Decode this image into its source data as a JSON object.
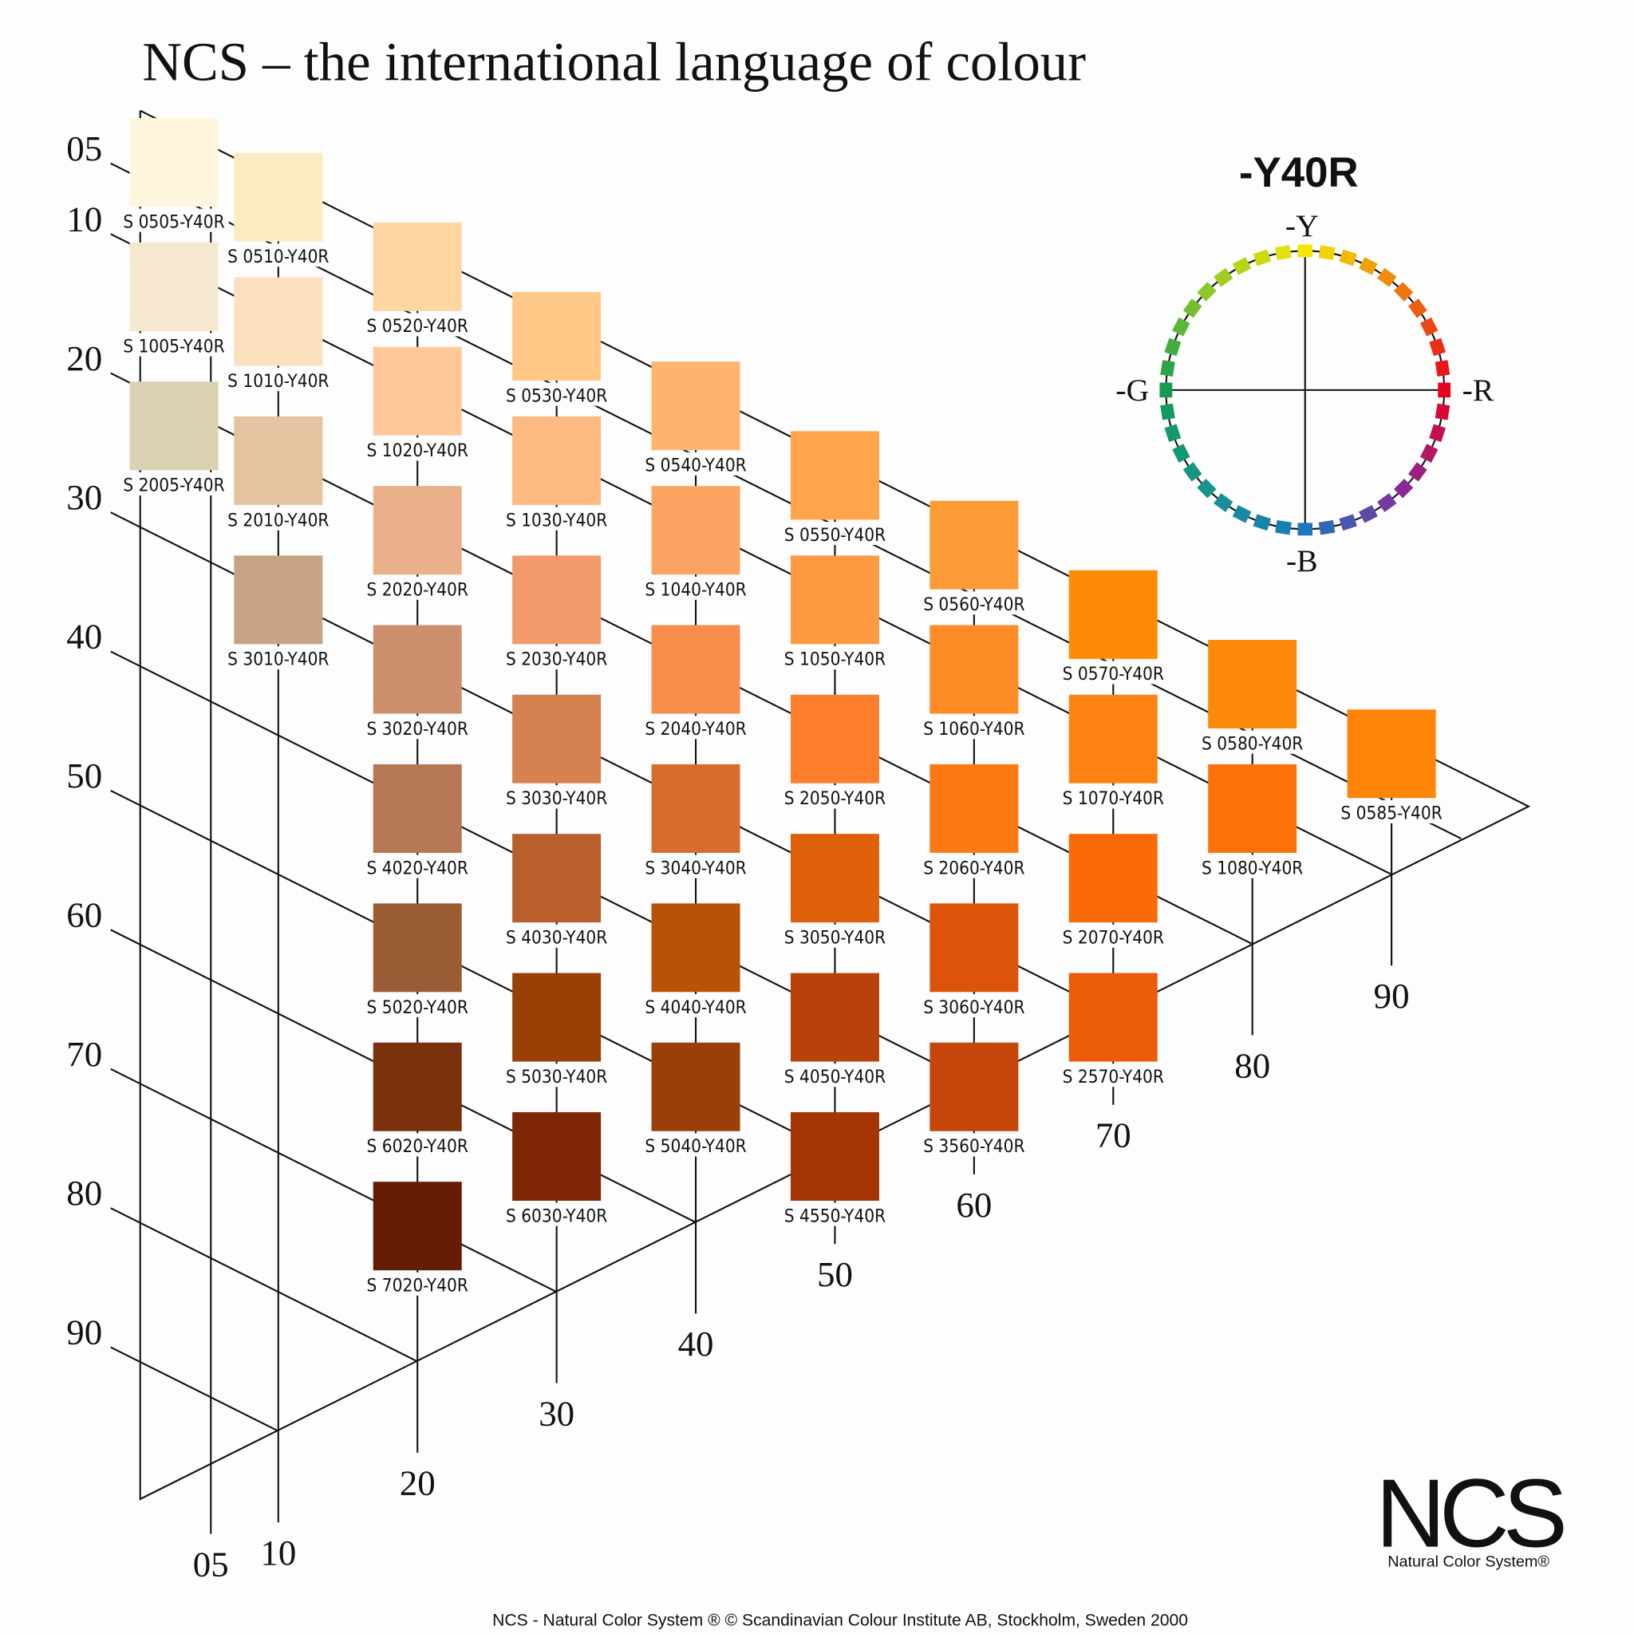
{
  "title": "NCS – the international language of colour",
  "swatches": [
    [
      {
        "label": "S 0505-Y40R",
        "color": "#fef6dc"
      },
      {
        "label": "S 1005-Y40R",
        "color": "#f5e8cf"
      },
      {
        "label": "S 2005-Y40R",
        "color": "#dcd0b2"
      }
    ],
    [
      {
        "label": "S 0510-Y40R",
        "color": "#feebc4"
      },
      {
        "label": "S 1010-Y40R",
        "color": "#fbe0bd"
      },
      {
        "label": "S 2010-Y40R",
        "color": "#e3c3a0"
      },
      {
        "label": "S 3010-Y40R",
        "color": "#c7a283"
      }
    ],
    [
      {
        "label": "S 0520-Y40R",
        "color": "#fed6a2"
      },
      {
        "label": "S 1020-Y40R",
        "color": "#fdc99b"
      },
      {
        "label": "S 2020-Y40R",
        "color": "#e9b08a"
      },
      {
        "label": "S 3020-Y40R",
        "color": "#cc916c"
      },
      {
        "label": "S 4020-Y40R",
        "color": "#b57853"
      },
      {
        "label": "S 5020-Y40R",
        "color": "#9a5c35"
      },
      {
        "label": "S 6020-Y40R",
        "color": "#7b310e"
      },
      {
        "label": "S 7020-Y40R",
        "color": "#651c04"
      }
    ],
    [
      {
        "label": "S 0530-Y40R",
        "color": "#ffc887"
      },
      {
        "label": "S 1030-Y40R",
        "color": "#fdba80"
      },
      {
        "label": "S 2030-Y40R",
        "color": "#f29a6a"
      },
      {
        "label": "S 3030-Y40R",
        "color": "#d58150"
      },
      {
        "label": "S 4030-Y40R",
        "color": "#b85f2c"
      },
      {
        "label": "S 5030-Y40R",
        "color": "#984006"
      },
      {
        "label": "S 6030-Y40R",
        "color": "#7f2607"
      }
    ],
    [
      {
        "label": "S 0540-Y40R",
        "color": "#feb36e"
      },
      {
        "label": "S 1040-Y40R",
        "color": "#fca562"
      },
      {
        "label": "S 2040-Y40R",
        "color": "#f88d4c"
      },
      {
        "label": "S 3040-Y40R",
        "color": "#d86c2c"
      },
      {
        "label": "S 4040-Y40R",
        "color": "#b85206"
      },
      {
        "label": "S 5040-Y40R",
        "color": "#9a3f0a"
      }
    ],
    [
      {
        "label": "S 0550-Y40R",
        "color": "#fea54b"
      },
      {
        "label": "S 1050-Y40R",
        "color": "#fd9a42"
      },
      {
        "label": "S 2050-Y40R",
        "color": "#fd7e2d"
      },
      {
        "label": "S 3050-Y40R",
        "color": "#df600b"
      },
      {
        "label": "S 4050-Y40R",
        "color": "#b7420a"
      },
      {
        "label": "S 4550-Y40R",
        "color": "#a43504"
      }
    ],
    [
      {
        "label": "S 0560-Y40R",
        "color": "#fd9b36"
      },
      {
        "label": "S 1060-Y40R",
        "color": "#fd8c26"
      },
      {
        "label": "S 2060-Y40R",
        "color": "#fc7813"
      },
      {
        "label": "S 3060-Y40R",
        "color": "#db5409"
      },
      {
        "label": "S 3560-Y40R",
        "color": "#c64508"
      }
    ],
    [
      {
        "label": "S 0570-Y40R",
        "color": "#fe8a06"
      },
      {
        "label": "S 1070-Y40R",
        "color": "#fe8212"
      },
      {
        "label": "S 2070-Y40R",
        "color": "#fb6a06"
      },
      {
        "label": "S 2570-Y40R",
        "color": "#ec5c08"
      }
    ],
    [
      {
        "label": "S 0580-Y40R",
        "color": "#fe8a09"
      },
      {
        "label": "S 1080-Y40R",
        "color": "#fe720b"
      }
    ],
    [
      {
        "label": "S 0585-Y40R",
        "color": "#fe8407"
      }
    ]
  ],
  "blackness_labels": [
    "05",
    "10",
    "20",
    "30",
    "40",
    "50",
    "60",
    "70",
    "80",
    "90"
  ],
  "chromaticness_labels": [
    "05",
    "10",
    "20",
    "30",
    "40",
    "50",
    "60",
    "70",
    "80",
    "90"
  ],
  "hue_panel": {
    "title": "-Y40R",
    "y": "-Y",
    "r": "-R",
    "b": "-B",
    "g": "-G"
  },
  "logo": {
    "mark": "NCS",
    "tagline": "Natural Color System®"
  },
  "footer": "NCS - Natural Color System ® © Scandinavian Colour Institute AB, Stockholm, Sweden 2000"
}
